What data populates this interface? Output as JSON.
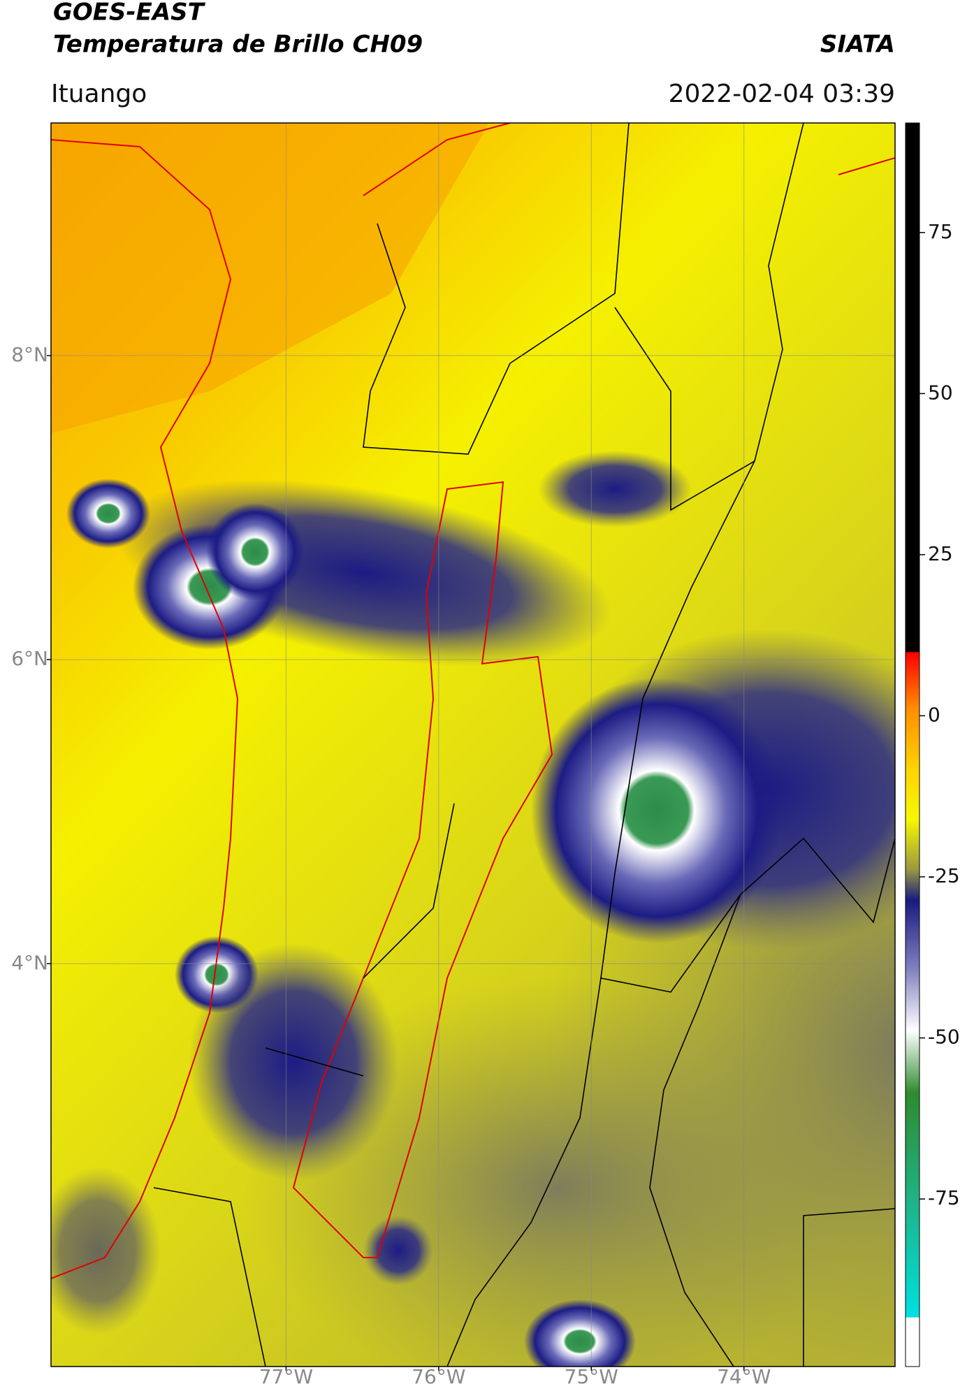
{
  "header": {
    "satellite": "GOES-EAST",
    "product": "Temperatura de Brillo CH09",
    "institution": "SIATA",
    "region": "Ituango",
    "datetime": "2022-02-04 03:39"
  },
  "map": {
    "lat_range": [
      1.35,
      9.53
    ],
    "lon_range": [
      -78.54,
      -73.01
    ],
    "lat_ticks": [
      {
        "value": 8,
        "label": "8°N"
      },
      {
        "value": 6,
        "label": "6°N"
      },
      {
        "value": 4,
        "label": "4°N"
      }
    ],
    "lon_ticks": [
      {
        "value": -77,
        "label": "77°W"
      },
      {
        "value": -76,
        "label": "76°W"
      },
      {
        "value": -75,
        "label": "75°W"
      },
      {
        "value": -74,
        "label": "74°W"
      }
    ]
  },
  "colorbar": {
    "lim": [
      -101,
      92
    ],
    "ticks": [
      75,
      50,
      25,
      0,
      -25,
      -50,
      -75
    ]
  }
}
